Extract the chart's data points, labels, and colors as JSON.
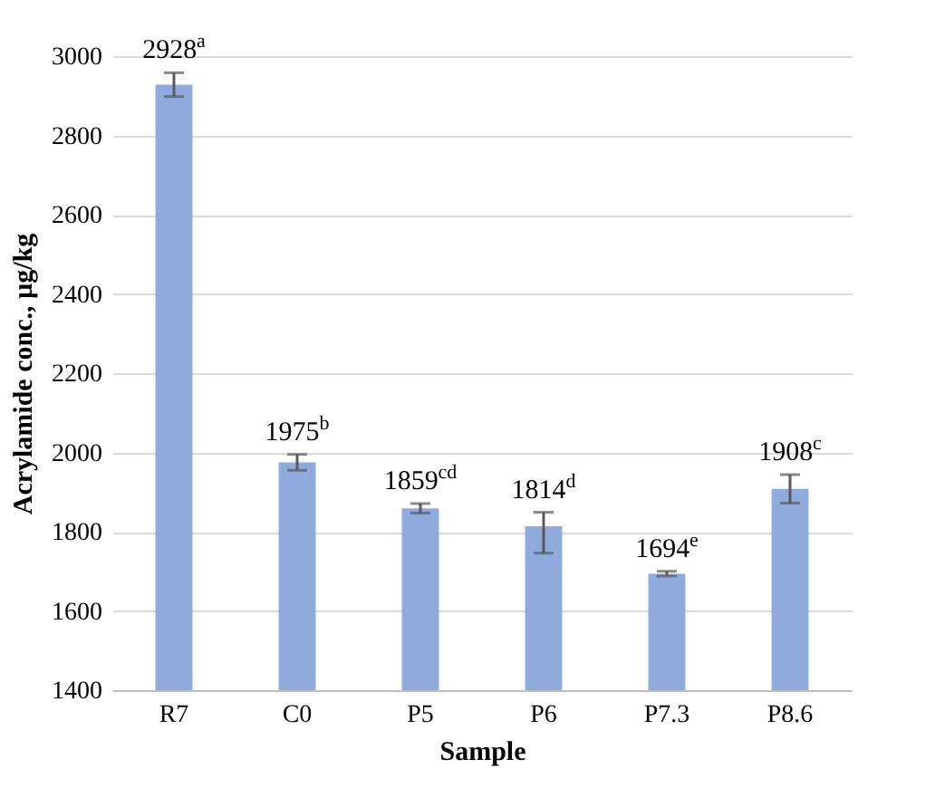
{
  "chart_data": {
    "type": "bar",
    "xlabel": "Sample",
    "ylabel": "Acrylamide conc., µg/kg",
    "categories": [
      "R7",
      "C0",
      "P5",
      "P6",
      "P7.3",
      "P8.6"
    ],
    "values": [
      2928,
      1975,
      1859,
      1814,
      1694,
      1908
    ],
    "color": "#8faadc",
    "errors": [
      30,
      20,
      12,
      [
        1746,
        1849
      ],
      6,
      36
    ],
    "value_labels": [
      "2928$^{a}$",
      "1975$^{b}$",
      "1859$^{cd}$",
      "1814$^{d}$",
      "1694$^{e}$",
      "1908$^{c}$"
    ],
    "ylim": [
      1400,
      3000
    ],
    "yticks": [
      1400,
      1600,
      1800,
      2000,
      2200,
      2400,
      2600,
      2800,
      3000
    ],
    "grid": "y"
  }
}
